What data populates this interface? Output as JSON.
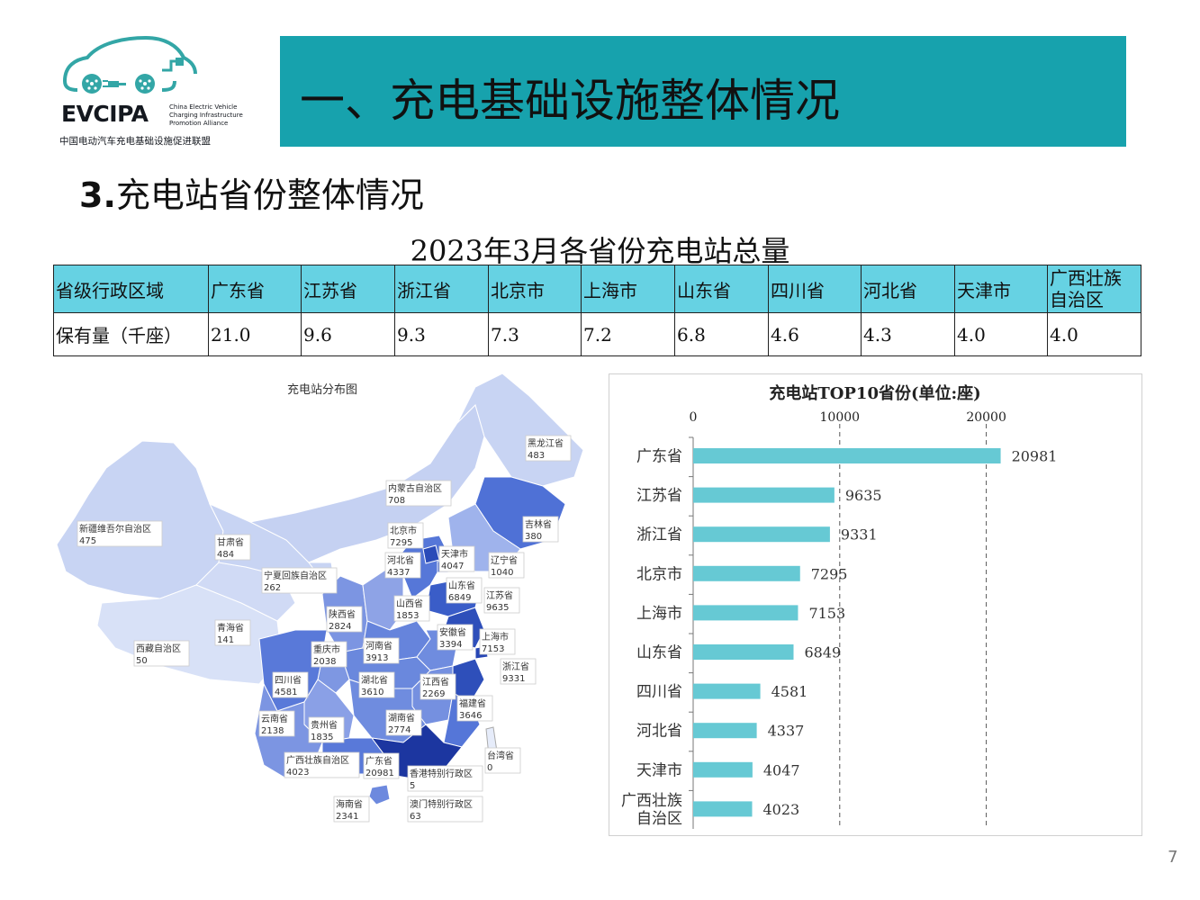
{
  "header": {
    "logo_name": "EVCIPA",
    "logo_sub": [
      "China Electric Vehicle",
      "Charging Infrastructure",
      "Promotion Alliance"
    ],
    "logo_cn": "中国电动汽车充电基础设施促进联盟",
    "title": "一、充电基础设施整体情况"
  },
  "section": {
    "number": "3.",
    "title": "充电站省份整体情况"
  },
  "table": {
    "title": "2023年3月各省份充电站总量",
    "header_label": "省级行政区域",
    "row_label": "保有量（千座）",
    "provinces": [
      "广东省",
      "江苏省",
      "浙江省",
      "北京市",
      "上海市",
      "山东省",
      "四川省",
      "河北省",
      "天津市",
      "广西壮族自治区"
    ],
    "values": [
      "21.0",
      "9.6",
      "9.3",
      "7.3",
      "7.2",
      "6.8",
      "4.6",
      "4.3",
      "4.0",
      "4.0"
    ]
  },
  "map": {
    "title": "充电站分布图",
    "labels": [
      {
        "name": "黑龙江省",
        "value": "483"
      },
      {
        "name": "内蒙古自治区",
        "value": "708"
      },
      {
        "name": "吉林省",
        "value": "380"
      },
      {
        "name": "新疆维吾尔自治区",
        "value": "475"
      },
      {
        "name": "甘肃省",
        "value": "484"
      },
      {
        "name": "北京市",
        "value": "7295"
      },
      {
        "name": "天津市",
        "value": "4047"
      },
      {
        "name": "辽宁省",
        "value": "1040"
      },
      {
        "name": "河北省",
        "value": "4337"
      },
      {
        "name": "山东省",
        "value": "6849"
      },
      {
        "name": "宁夏回族自治区",
        "value": "262"
      },
      {
        "name": "山西省",
        "value": "1853"
      },
      {
        "name": "江苏省",
        "value": "9635"
      },
      {
        "name": "陕西省",
        "value": "2824"
      },
      {
        "name": "青海省",
        "value": "141"
      },
      {
        "name": "安徽省",
        "value": "3394"
      },
      {
        "name": "上海市",
        "value": "7153"
      },
      {
        "name": "西藏自治区",
        "value": "50"
      },
      {
        "name": "重庆市",
        "value": "2038"
      },
      {
        "name": "河南省",
        "value": "3913"
      },
      {
        "name": "浙江省",
        "value": "9331"
      },
      {
        "name": "四川省",
        "value": "4581"
      },
      {
        "name": "湖北省",
        "value": "3610"
      },
      {
        "name": "江西省",
        "value": "2269"
      },
      {
        "name": "福建省",
        "value": "3646"
      },
      {
        "name": "云南省",
        "value": "2138"
      },
      {
        "name": "贵州省",
        "value": "1835"
      },
      {
        "name": "湖南省",
        "value": "2774"
      },
      {
        "name": "广西壮族自治区",
        "value": "4023"
      },
      {
        "name": "广东省",
        "value": "20981"
      },
      {
        "name": "台湾省",
        "value": "0"
      },
      {
        "name": "香港特别行政区",
        "value": "5"
      },
      {
        "name": "海南省",
        "value": "2341"
      },
      {
        "name": "澳门特别行政区",
        "value": "63"
      }
    ]
  },
  "chart_data": {
    "type": "bar",
    "orientation": "horizontal",
    "title": "充电站TOP10省份(单位:座)",
    "categories": [
      "广东省",
      "江苏省",
      "浙江省",
      "北京市",
      "上海市",
      "山东省",
      "四川省",
      "河北省",
      "天津市",
      "广西壮族自治区"
    ],
    "category_lines": [
      [
        "广东省"
      ],
      [
        "江苏省"
      ],
      [
        "浙江省"
      ],
      [
        "北京市"
      ],
      [
        "上海市"
      ],
      [
        "山东省"
      ],
      [
        "四川省"
      ],
      [
        "河北省"
      ],
      [
        "天津市"
      ],
      [
        "广西壮族",
        "自治区"
      ]
    ],
    "values": [
      20981,
      9635,
      9331,
      7295,
      7153,
      6849,
      4581,
      4337,
      4047,
      4023
    ],
    "xlim": [
      0,
      25000
    ],
    "xticks": [
      0,
      10000,
      20000
    ],
    "xtick_labels": [
      "0",
      "10000",
      "20000"
    ],
    "xaxis_position": "top",
    "grid": "dashed vertical",
    "bar_color": "#66c9d4",
    "data_labels": true
  },
  "page_number": "7",
  "colors": {
    "title_bar": "#17a2ad",
    "table_header": "#66d2e3",
    "bar": "#66c9d4"
  }
}
